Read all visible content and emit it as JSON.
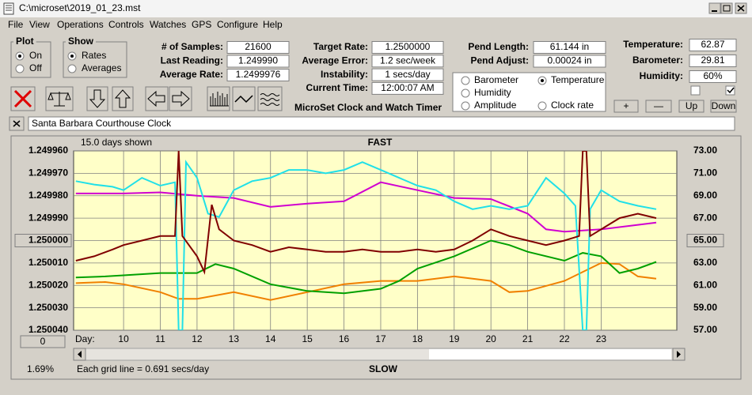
{
  "window_title": "C:\\microset\\2019_01_23.mst",
  "menu": [
    "File",
    "View",
    "Operations",
    "Controls",
    "Watches",
    "GPS",
    "Configure",
    "Help"
  ],
  "plot_group": {
    "title": "Plot",
    "options": [
      "On",
      "Off"
    ]
  },
  "show_group": {
    "title": "Show",
    "options": [
      "Rates",
      "Averages"
    ]
  },
  "fields": [
    [
      [
        "# of Samples:",
        "21600"
      ],
      [
        "Last Reading:",
        "1.249990"
      ],
      [
        "Average Rate:",
        "1.2499976"
      ]
    ],
    [
      [
        "Target Rate:",
        "1.2500000"
      ],
      [
        "Average Error:",
        "1.2 sec/week"
      ],
      [
        "Instability:",
        "1 secs/day"
      ],
      [
        "Current Time:",
        "12:00:07 AM"
      ]
    ],
    [
      [
        "Pend Length:",
        "61.144 in"
      ],
      [
        "Pend Adjust:",
        "0.00024 in"
      ]
    ],
    [
      [
        "Temperature:",
        "62.87"
      ],
      [
        "Barometer:",
        "29.81"
      ],
      [
        "Humidity:",
        "60%"
      ]
    ]
  ],
  "app_title": "MicroSet Clock and Watch Timer",
  "adjust_buttons": [
    "+",
    "—",
    "Up",
    "Down"
  ],
  "clock_name": "Santa Barbara Courthouse Clock",
  "status": {
    "offset_button": "0",
    "percent": "1.69%"
  },
  "chart_data": {
    "type": "line",
    "top_label": "FAST",
    "bottom_label": "SLOW",
    "span_label": "15.0 days shown",
    "x_label": "Day:",
    "footnote": "Each grid line = 0.691 secs/day",
    "grid": true,
    "background": "#ffffc8",
    "xlim": [
      8.64,
      25.06
    ],
    "xticks": [
      10,
      11,
      12,
      13,
      14,
      15,
      16,
      17,
      18,
      19,
      20,
      21,
      22,
      23
    ],
    "ylim": [
      1.25004,
      1.24996
    ],
    "yticks": [
      {
        "value": 1.24996,
        "label": "1.249960"
      },
      {
        "value": 1.24997,
        "label": "1.249970"
      },
      {
        "value": 1.24998,
        "label": "1.249980"
      },
      {
        "value": 1.24999,
        "label": "1.249990"
      },
      {
        "value": 1.25,
        "label": "1.250000"
      },
      {
        "value": 1.25001,
        "label": "1.250010"
      },
      {
        "value": 1.25002,
        "label": "1.250020"
      },
      {
        "value": 1.25003,
        "label": "1.250030"
      },
      {
        "value": 1.25004,
        "label": "1.250040"
      }
    ],
    "y2lim": [
      57,
      73
    ],
    "y2ticks": [
      {
        "value": 73,
        "label": "73.00"
      },
      {
        "value": 71,
        "label": "71.00"
      },
      {
        "value": 69,
        "label": "69.00"
      },
      {
        "value": 67,
        "label": "67.00"
      },
      {
        "value": 65,
        "label": "65.00"
      },
      {
        "value": 63,
        "label": "63.00"
      },
      {
        "value": 61,
        "label": "61.00"
      },
      {
        "value": 59,
        "label": "59.00"
      },
      {
        "value": 57,
        "label": "57.00"
      }
    ],
    "series": [
      {
        "name": "Barometer",
        "color": "#f08000",
        "axis": "y2",
        "x": [
          8.7,
          9.5,
          10,
          11,
          11.5,
          12,
          13,
          14,
          15,
          16,
          17,
          18,
          19,
          20,
          20.5,
          21,
          22,
          23,
          23.5,
          24,
          24.5
        ],
        "values": [
          61.2,
          61.3,
          61.1,
          60.4,
          59.8,
          59.8,
          60.4,
          59.7,
          60.4,
          61.1,
          61.4,
          61.4,
          61.8,
          61.4,
          60.4,
          60.5,
          61.4,
          63.0,
          62.9,
          61.8,
          61.6
        ]
      },
      {
        "name": "Temperature",
        "color": "#00a000",
        "axis": "y2",
        "selected": true,
        "x": [
          8.7,
          9.5,
          10,
          11,
          12,
          12.5,
          13,
          14,
          15,
          16,
          17,
          17.5,
          18,
          19,
          20,
          20.5,
          21,
          22,
          22.5,
          23,
          23.5,
          24,
          24.5
        ],
        "values": [
          61.7,
          61.8,
          61.9,
          62.1,
          62.1,
          62.9,
          62.5,
          61.1,
          60.5,
          60.3,
          60.7,
          61.4,
          62.5,
          63.6,
          65.0,
          64.6,
          64.0,
          63.2,
          63.9,
          63.6,
          62.1,
          62.5,
          63.1
        ]
      },
      {
        "name": "Humidity",
        "color": "#d000d0",
        "axis": "y2",
        "x": [
          8.7,
          9.5,
          10,
          11,
          12,
          13,
          14,
          15,
          16,
          17,
          18,
          19,
          20,
          21,
          21.5,
          22,
          23,
          24,
          24.5
        ],
        "values": [
          69.2,
          69.2,
          69.2,
          69.3,
          69.0,
          68.8,
          68.0,
          68.3,
          68.5,
          70.2,
          69.5,
          68.8,
          68.7,
          67.4,
          66.0,
          65.8,
          66.0,
          66.4,
          66.6
        ]
      },
      {
        "name": "Amplitude",
        "color": "#20e0e8",
        "axis": "y2",
        "x": [
          8.7,
          9.2,
          9.7,
          10,
          10.5,
          11,
          11.4,
          11.5,
          11.6,
          11.7,
          12,
          12.3,
          12.6,
          13,
          13.5,
          14,
          14.5,
          15,
          15.5,
          16,
          16.5,
          17,
          17.5,
          18,
          18.5,
          19,
          19.5,
          20,
          20.5,
          21,
          21.5,
          22,
          22.3,
          22.5,
          22.6,
          22.7,
          23,
          23.5,
          24,
          24.5
        ],
        "values": [
          70.3,
          70.0,
          69.8,
          69.5,
          70.6,
          69.9,
          70.2,
          57,
          57,
          72.0,
          70.6,
          67.4,
          67.1,
          69.5,
          70.3,
          70.6,
          71.3,
          71.3,
          71.0,
          71.3,
          72.0,
          71.3,
          70.6,
          69.9,
          69.5,
          68.5,
          67.8,
          68.1,
          67.8,
          68.1,
          70.6,
          69.2,
          68.1,
          57,
          57,
          67.8,
          69.5,
          68.5,
          68.1,
          67.8
        ]
      },
      {
        "name": "Clock rate",
        "color": "#800000",
        "axis": "y",
        "x": [
          8.7,
          9.2,
          9.7,
          10,
          10.5,
          11,
          11.4,
          11.5,
          11.6,
          12,
          12.2,
          12.4,
          12.6,
          13,
          13.5,
          14,
          14.5,
          15,
          15.5,
          16,
          16.5,
          17,
          17.5,
          18,
          18.5,
          19,
          19.5,
          20,
          20.5,
          21,
          21.5,
          22,
          22.4,
          22.5,
          22.6,
          22.7,
          23,
          23.5,
          24,
          24.5
        ],
        "values": [
          1.250009,
          1.250007,
          1.250004,
          1.250002,
          1.25,
          1.249998,
          1.249998,
          1.24996,
          1.249998,
          1.250007,
          1.250014,
          1.249984,
          1.249995,
          1.25,
          1.250002,
          1.250005,
          1.250003,
          1.250004,
          1.250005,
          1.250005,
          1.250004,
          1.250005,
          1.250005,
          1.250004,
          1.250005,
          1.250004,
          1.25,
          1.249995,
          1.249998,
          1.25,
          1.250002,
          1.25,
          1.249998,
          1.24996,
          1.24996,
          1.249998,
          1.249995,
          1.24999,
          1.249988,
          1.24999
        ]
      }
    ]
  }
}
